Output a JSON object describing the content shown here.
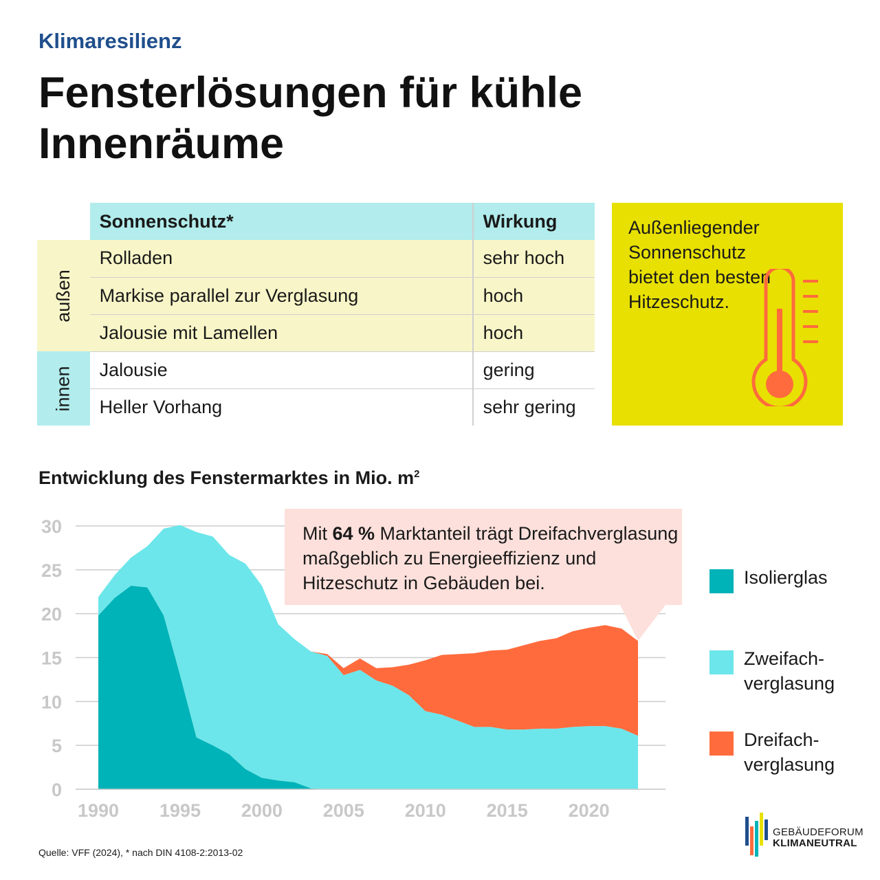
{
  "header": {
    "kicker": "Klimaresilienz",
    "title": "Fensterlösungen für kühle Innenräume"
  },
  "table": {
    "col_header_1": "Sonnenschutz*",
    "col_header_2": "Wirkung",
    "group_outside": "außen",
    "group_inside": "innen",
    "rows": [
      {
        "name": "Rolladen",
        "effect": "sehr hoch"
      },
      {
        "name": "Markise parallel zur Verglasung",
        "effect": "hoch"
      },
      {
        "name": "Jalousie mit Lamellen",
        "effect": "hoch"
      },
      {
        "name": "Jalousie",
        "effect": "gering"
      },
      {
        "name": "Heller Vorhang",
        "effect": "sehr gering"
      }
    ]
  },
  "callout": {
    "text": "Außenliegender Sonnenschutz bietet den besten Hitzeschutz.",
    "icon": "thermometer-icon",
    "bg_color": "#e8e000",
    "icon_color": "#ff6b3d"
  },
  "chart_title": "Entwicklung des Fenstermarktes in Mio. m",
  "chart_title_sup": "2",
  "bubble": {
    "pre": "Mit ",
    "bold": "64 %",
    "post": " Marktanteil trägt Dreifachver­glasung maßgeblich zu Energieeffizienz und Hitzeschutz in Gebäuden bei."
  },
  "chart_data": {
    "type": "area",
    "stacked": true,
    "x": [
      1990,
      1991,
      1992,
      1993,
      1994,
      1995,
      1996,
      1997,
      1998,
      1999,
      2000,
      2001,
      2002,
      2003,
      2004,
      2005,
      2006,
      2007,
      2008,
      2009,
      2010,
      2011,
      2012,
      2013,
      2014,
      2015,
      2016,
      2017,
      2018,
      2019,
      2020,
      2021,
      2022,
      2023
    ],
    "series": [
      {
        "name": "Isolierglas",
        "color": "#00b3b8",
        "values": [
          19.8,
          21.8,
          23.2,
          23.0,
          19.8,
          13.0,
          5.9,
          5.0,
          4.0,
          2.3,
          1.3,
          1.0,
          0.8,
          0.1,
          0,
          0,
          0,
          0,
          0,
          0,
          0,
          0,
          0,
          0,
          0,
          0,
          0,
          0,
          0,
          0,
          0,
          0,
          0,
          0
        ]
      },
      {
        "name": "Zweifach-verglasung",
        "color": "#6ce6ea",
        "values": [
          2.1,
          2.6,
          3.2,
          4.7,
          9.9,
          17.1,
          23.4,
          23.8,
          22.7,
          23.4,
          21.9,
          17.8,
          16.3,
          15.6,
          15.2,
          13.0,
          13.6,
          12.4,
          11.8,
          10.7,
          8.9,
          8.5,
          7.8,
          7.1,
          7.1,
          6.8,
          6.8,
          6.9,
          6.9,
          7.1,
          7.2,
          7.2,
          6.9,
          6.1
        ]
      },
      {
        "name": "Dreifach-verglasung",
        "color": "#ff6b3d",
        "values": [
          0,
          0,
          0,
          0,
          0,
          0,
          0,
          0,
          0,
          0,
          0,
          0,
          0,
          0,
          0.2,
          0.8,
          1.3,
          1.4,
          2.1,
          3.5,
          5.8,
          6.8,
          7.6,
          8.4,
          8.7,
          9.1,
          9.6,
          10.0,
          10.3,
          10.9,
          11.2,
          11.5,
          11.4,
          10.8
        ]
      }
    ],
    "xlabel": "",
    "ylabel": "",
    "ylim": [
      0,
      30
    ],
    "yticks": [
      0,
      5,
      10,
      15,
      20,
      25,
      30
    ],
    "xticks": [
      1990,
      1995,
      2000,
      2005,
      2010,
      2015,
      2020
    ],
    "grid": true,
    "legend_position": "right"
  },
  "source": "Quelle: VFF (2024), * nach DIN 4108-2:2013-02",
  "logo": {
    "line1": "GEBÄUDEFORUM",
    "line2": "KLIMANEUTRAL"
  }
}
